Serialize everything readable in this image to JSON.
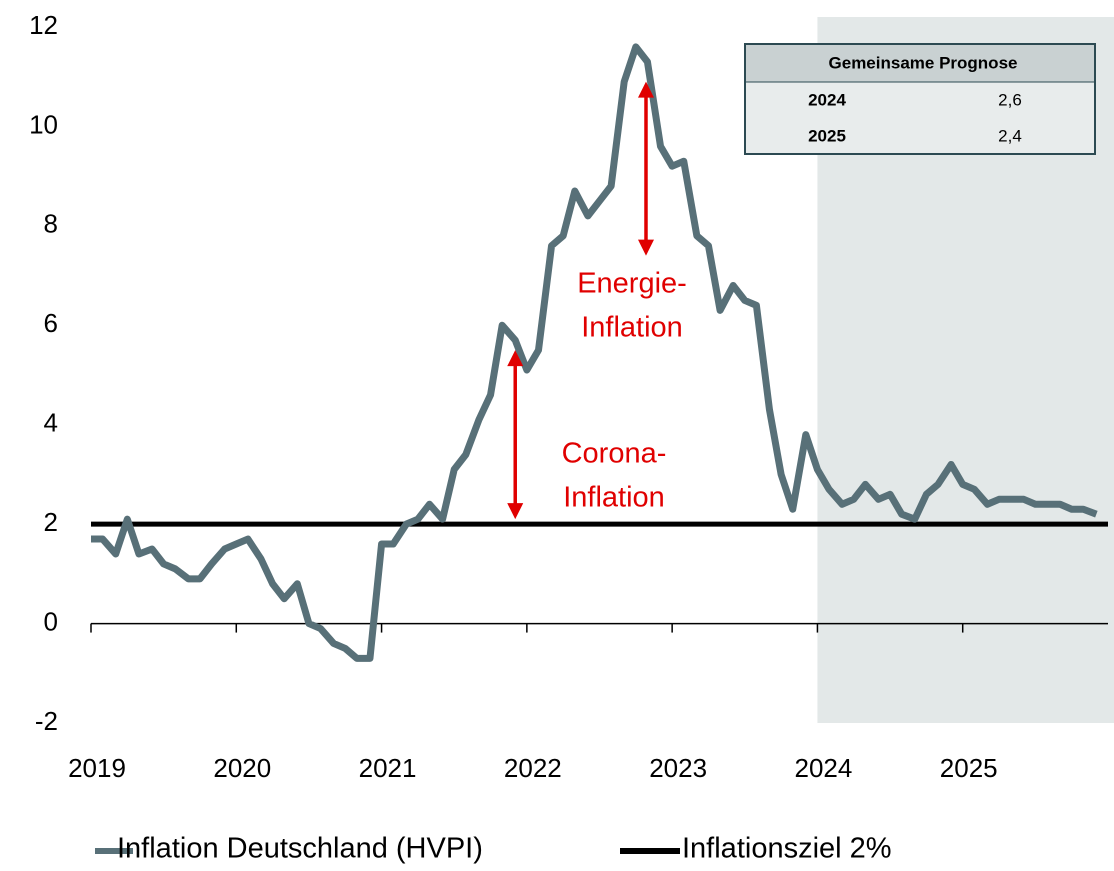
{
  "chart_data": {
    "type": "line",
    "xlim": [
      2019,
      2026
    ],
    "xticks": [
      2019,
      2020,
      2021,
      2022,
      2023,
      2024,
      2025
    ],
    "ylim": [
      -2,
      12
    ],
    "yticks": [
      -2,
      0,
      2,
      4,
      6,
      8,
      10,
      12
    ],
    "forecast_start": 2024,
    "forecast_color": "#e3e8e8",
    "series": [
      {
        "name": "Inflation Deutschland (HVPI)",
        "color": "#587078",
        "x": [
          2019,
          2019.08,
          2019.17,
          2019.25,
          2019.33,
          2019.42,
          2019.5,
          2019.58,
          2019.67,
          2019.75,
          2019.83,
          2019.92,
          2020,
          2020.08,
          2020.17,
          2020.25,
          2020.33,
          2020.42,
          2020.5,
          2020.58,
          2020.67,
          2020.75,
          2020.83,
          2020.92,
          2021,
          2021.08,
          2021.17,
          2021.25,
          2021.33,
          2021.42,
          2021.5,
          2021.58,
          2021.67,
          2021.75,
          2021.83,
          2021.92,
          2022,
          2022.08,
          2022.17,
          2022.25,
          2022.33,
          2022.42,
          2022.5,
          2022.58,
          2022.67,
          2022.75,
          2022.83,
          2022.92,
          2023,
          2023.08,
          2023.17,
          2023.25,
          2023.33,
          2023.42,
          2023.5,
          2023.58,
          2023.67,
          2023.75,
          2023.83,
          2023.92,
          2024,
          2024.08,
          2024.17,
          2024.25,
          2024.33,
          2024.42,
          2024.5,
          2024.58,
          2024.67,
          2024.75,
          2024.83,
          2024.92,
          2025,
          2025.08,
          2025.17,
          2025.25,
          2025.33,
          2025.42,
          2025.5,
          2025.58,
          2025.67,
          2025.75,
          2025.83,
          2025.92
        ],
        "values": [
          1.7,
          1.7,
          1.4,
          2.1,
          1.4,
          1.5,
          1.2,
          1.1,
          0.9,
          0.9,
          1.2,
          1.5,
          1.6,
          1.7,
          1.3,
          0.8,
          0.5,
          0.8,
          0.0,
          -0.1,
          -0.4,
          -0.5,
          -0.7,
          -0.7,
          1.6,
          1.6,
          2.0,
          2.1,
          2.4,
          2.1,
          3.1,
          3.4,
          4.1,
          4.6,
          6.0,
          5.7,
          5.1,
          5.5,
          7.6,
          7.8,
          8.7,
          8.2,
          8.5,
          8.8,
          10.9,
          11.6,
          11.3,
          9.6,
          9.2,
          9.3,
          7.8,
          7.6,
          6.3,
          6.8,
          6.5,
          6.4,
          4.3,
          3.0,
          2.3,
          3.8,
          3.1,
          2.7,
          2.4,
          2.5,
          2.8,
          2.5,
          2.6,
          2.2,
          2.1,
          2.6,
          2.8,
          3.2,
          2.8,
          2.7,
          2.4,
          2.5,
          2.5,
          2.5,
          2.4,
          2.4,
          2.4,
          2.3,
          2.3,
          2.2
        ]
      },
      {
        "name": "Inflationsziel 2%",
        "color": "#000000",
        "x": [
          2019,
          2026
        ],
        "values": [
          2,
          2
        ]
      }
    ],
    "annotations": [
      {
        "text": [
          "Energie-",
          "Inflation"
        ],
        "arrow_x": 2022.82,
        "arrow_y": [
          7.4,
          10.9
        ],
        "color": "#e00000"
      },
      {
        "text": [
          "Corona-",
          "Inflation"
        ],
        "arrow_x": 2021.92,
        "arrow_y": [
          2.1,
          5.5
        ],
        "color": "#e00000"
      }
    ],
    "table": {
      "title": "Gemeinsame Prognose",
      "rows": [
        [
          "2024",
          "2,6"
        ],
        [
          "2025",
          "2,4"
        ]
      ]
    }
  }
}
